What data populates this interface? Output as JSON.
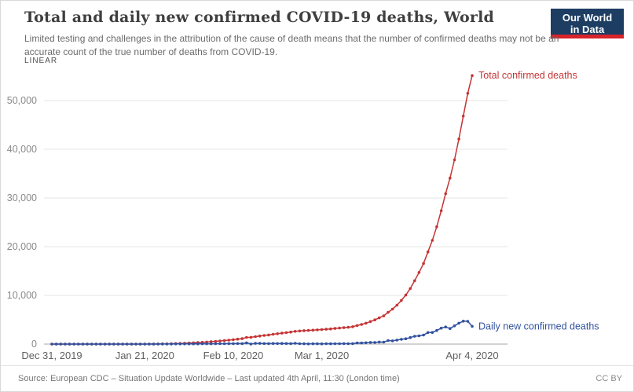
{
  "header": {
    "title": "Total and daily new confirmed COVID-19 deaths, World",
    "subtitle": "Limited testing and challenges in the attribution of the cause of death means that the number of confirmed deaths may not be an accurate count of the true number of deaths from COVID-19.",
    "logo": {
      "line1": "Our World",
      "line2": "in Data",
      "bg_color": "#1d3d63",
      "accent_color": "#d8232a"
    }
  },
  "chart": {
    "scale_label": "LINEAR"
  },
  "chart_data": {
    "type": "line",
    "title": "Total and daily new confirmed COVID-19 deaths, World",
    "grid": true,
    "ylim": [
      0,
      56000
    ],
    "y_axis": {
      "ticks": [
        {
          "value": 0,
          "label": "0"
        },
        {
          "value": 10000,
          "label": "10,000"
        },
        {
          "value": 20000,
          "label": "20,000"
        },
        {
          "value": 30000,
          "label": "30,000"
        },
        {
          "value": 40000,
          "label": "40,000"
        },
        {
          "value": 50000,
          "label": "50,000"
        }
      ]
    },
    "x_axis": {
      "start_date": "Dec 31, 2019",
      "end_date": "Apr 4, 2020",
      "ticks": [
        {
          "i": 0,
          "label": "Dec 31, 2019"
        },
        {
          "i": 21,
          "label": "Jan 21, 2020"
        },
        {
          "i": 41,
          "label": "Feb 10, 2020"
        },
        {
          "i": 61,
          "label": "Mar 1, 2020"
        },
        {
          "i": 95,
          "label": "Apr 4, 2020"
        }
      ]
    },
    "series": [
      {
        "name": "Total confirmed deaths",
        "color": "#c53434",
        "values": [
          0,
          0,
          0,
          0,
          0,
          0,
          0,
          0,
          0,
          0,
          0,
          1,
          1,
          1,
          2,
          2,
          2,
          2,
          3,
          3,
          3,
          6,
          9,
          17,
          25,
          41,
          56,
          80,
          106,
          132,
          170,
          213,
          259,
          304,
          362,
          426,
          492,
          565,
          638,
          724,
          813,
          910,
          1018,
          1115,
          1369,
          1383,
          1526,
          1669,
          1775,
          1873,
          2009,
          2126,
          2247,
          2360,
          2460,
          2618,
          2699,
          2763,
          2800,
          2858,
          2923,
          2977,
          3050,
          3117,
          3202,
          3286,
          3376,
          3459,
          3558,
          3802,
          4028,
          4296,
          4634,
          4971,
          5384,
          5788,
          6513,
          7170,
          7989,
          8966,
          10062,
          11398,
          13014,
          14703,
          16552,
          18916,
          21297,
          24095,
          27370,
          30890,
          34078,
          37815,
          42107,
          46809,
          51485,
          55132
        ]
      },
      {
        "name": "Daily new confirmed deaths",
        "color": "#32529f",
        "values": [
          0,
          0,
          0,
          0,
          0,
          0,
          0,
          0,
          0,
          0,
          0,
          1,
          0,
          0,
          1,
          0,
          0,
          0,
          1,
          0,
          0,
          3,
          3,
          8,
          8,
          16,
          15,
          24,
          26,
          26,
          38,
          43,
          46,
          45,
          58,
          64,
          66,
          73,
          73,
          86,
          89,
          97,
          108,
          97,
          254,
          14,
          143,
          143,
          106,
          98,
          136,
          117,
          121,
          113,
          100,
          158,
          81,
          64,
          37,
          58,
          65,
          54,
          73,
          67,
          85,
          84,
          90,
          83,
          99,
          244,
          226,
          268,
          338,
          337,
          413,
          404,
          725,
          657,
          819,
          977,
          1096,
          1336,
          1616,
          1689,
          1849,
          2364,
          2381,
          2798,
          3275,
          3520,
          3188,
          3737,
          4292,
          4702,
          4676,
          3647
        ]
      }
    ]
  },
  "footer": {
    "source": "Source: European CDC – Situation Update Worldwide – Last updated 4th April, 11:30 (London time)",
    "license": "CC BY"
  }
}
